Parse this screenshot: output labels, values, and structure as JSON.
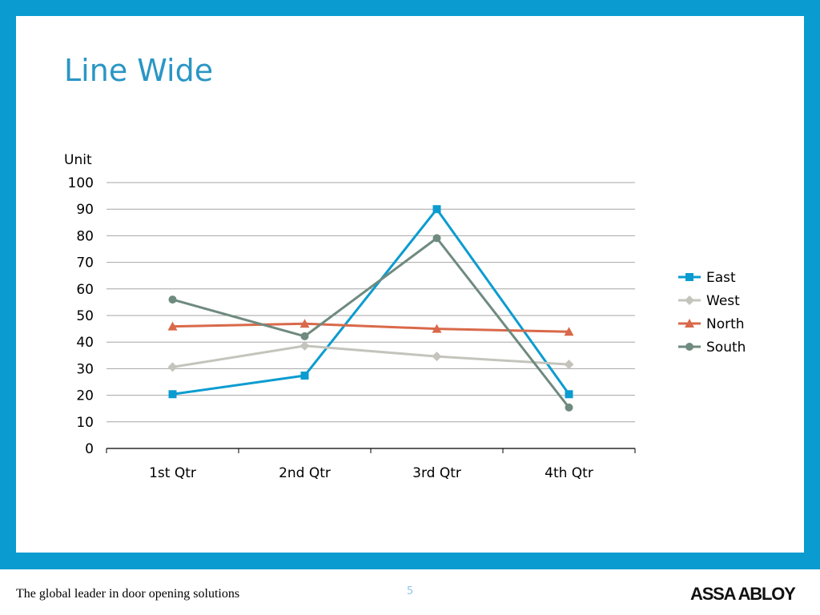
{
  "slide": {
    "title": "Line Wide"
  },
  "footer": {
    "tagline": "The global leader in door opening solutions",
    "page_number": "5",
    "logo_text": "ASSA ABLOY"
  },
  "colors": {
    "frame": "#0a9cd0",
    "title": "#2a96c4",
    "gridline": "#a6a6a6",
    "axis": "#000000"
  },
  "chart_data": {
    "type": "line",
    "title": "",
    "xlabel": "",
    "ylabel": "Unit",
    "categories": [
      "1st Qtr",
      "2nd Qtr",
      "3rd Qtr",
      "4th Qtr"
    ],
    "ylim": [
      0,
      100
    ],
    "yticks": [
      0,
      10,
      20,
      30,
      40,
      50,
      60,
      70,
      80,
      90,
      100
    ],
    "grid": true,
    "legend": "right",
    "series": [
      {
        "name": "East",
        "values": [
          20.4,
          27.4,
          90,
          20.4
        ],
        "color": "#0a9cd0",
        "marker": "square"
      },
      {
        "name": "West",
        "values": [
          30.6,
          38.6,
          34.6,
          31.6
        ],
        "color": "#c4c4bd",
        "marker": "diamond"
      },
      {
        "name": "North",
        "values": [
          45.9,
          46.9,
          45,
          43.9
        ],
        "color": "#d9694a",
        "marker": "triangle"
      },
      {
        "name": "South",
        "values": [
          56,
          42.2,
          79.1,
          15.4
        ],
        "color": "#6f8a7f",
        "marker": "circle"
      }
    ]
  }
}
